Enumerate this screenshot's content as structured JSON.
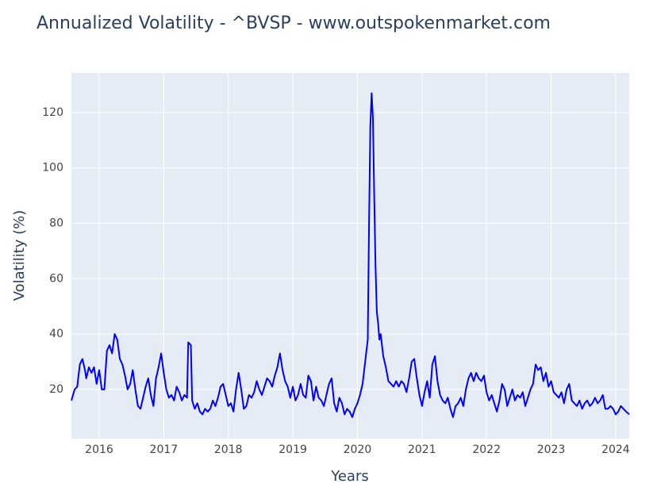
{
  "chart_data": {
    "type": "line",
    "title": "Annualized Volatility - ^BVSP - www.outspokenmarket.com",
    "x_label": "Years",
    "y_label": "Volatility (%)",
    "xlim": [
      2015.57,
      2024.21
    ],
    "xticks": [
      2016,
      2017,
      2018,
      2019,
      2020,
      2021,
      2022,
      2023,
      2024
    ],
    "ylim": [
      2.2,
      134.3
    ],
    "yticks": [
      20,
      40,
      60,
      80,
      100,
      120
    ],
    "grid": true,
    "x": [
      2015.57,
      2015.62,
      2015.66,
      2015.7,
      2015.74,
      2015.78,
      2015.8,
      2015.84,
      2015.88,
      2015.92,
      2015.96,
      2016.0,
      2016.04,
      2016.08,
      2016.12,
      2016.16,
      2016.2,
      2016.24,
      2016.28,
      2016.32,
      2016.36,
      2016.4,
      2016.44,
      2016.48,
      2016.52,
      2016.56,
      2016.6,
      2016.64,
      2016.68,
      2016.72,
      2016.76,
      2016.8,
      2016.84,
      2016.88,
      2016.92,
      2016.96,
      2017.0,
      2017.04,
      2017.08,
      2017.12,
      2017.16,
      2017.2,
      2017.24,
      2017.28,
      2017.32,
      2017.36,
      2017.38,
      2017.42,
      2017.44,
      2017.48,
      2017.52,
      2017.56,
      2017.6,
      2017.64,
      2017.68,
      2017.72,
      2017.76,
      2017.8,
      2017.84,
      2017.88,
      2017.92,
      2017.96,
      2018.0,
      2018.04,
      2018.08,
      2018.12,
      2018.16,
      2018.2,
      2018.24,
      2018.28,
      2018.32,
      2018.36,
      2018.4,
      2018.44,
      2018.48,
      2018.52,
      2018.56,
      2018.6,
      2018.64,
      2018.68,
      2018.72,
      2018.76,
      2018.8,
      2018.84,
      2018.88,
      2018.92,
      2018.96,
      2019.0,
      2019.04,
      2019.08,
      2019.12,
      2019.16,
      2019.2,
      2019.24,
      2019.28,
      2019.32,
      2019.36,
      2019.4,
      2019.44,
      2019.48,
      2019.52,
      2019.56,
      2019.6,
      2019.64,
      2019.68,
      2019.72,
      2019.76,
      2019.8,
      2019.84,
      2019.88,
      2019.92,
      2019.96,
      2020.0,
      2020.04,
      2020.08,
      2020.12,
      2020.16,
      2020.18,
      2020.2,
      2020.22,
      2020.24,
      2020.26,
      2020.28,
      2020.3,
      2020.32,
      2020.34,
      2020.36,
      2020.4,
      2020.44,
      2020.48,
      2020.52,
      2020.56,
      2020.6,
      2020.64,
      2020.68,
      2020.72,
      2020.76,
      2020.8,
      2020.84,
      2020.88,
      2020.92,
      2020.96,
      2021.0,
      2021.04,
      2021.08,
      2021.12,
      2021.16,
      2021.2,
      2021.24,
      2021.28,
      2021.32,
      2021.36,
      2021.4,
      2021.44,
      2021.48,
      2021.52,
      2021.56,
      2021.6,
      2021.64,
      2021.68,
      2021.72,
      2021.76,
      2021.8,
      2021.84,
      2021.88,
      2021.92,
      2021.96,
      2022.0,
      2022.04,
      2022.08,
      2022.12,
      2022.16,
      2022.2,
      2022.24,
      2022.28,
      2022.32,
      2022.36,
      2022.4,
      2022.44,
      2022.48,
      2022.52,
      2022.56,
      2022.6,
      2022.64,
      2022.68,
      2022.72,
      2022.76,
      2022.8,
      2022.84,
      2022.88,
      2022.92,
      2022.96,
      2023.0,
      2023.04,
      2023.08,
      2023.12,
      2023.16,
      2023.2,
      2023.24,
      2023.28,
      2023.32,
      2023.36,
      2023.4,
      2023.44,
      2023.48,
      2023.52,
      2023.56,
      2023.6,
      2023.64,
      2023.68,
      2023.72,
      2023.76,
      2023.8,
      2023.84,
      2023.88,
      2023.92,
      2023.96,
      2024.0,
      2024.04,
      2024.08,
      2024.12,
      2024.16,
      2024.21
    ],
    "series": [
      {
        "name": "Volatility",
        "color": "#0000ff",
        "values": [
          16,
          20,
          21,
          29,
          31,
          27,
          24,
          28,
          26,
          28,
          22,
          27,
          20,
          20,
          34,
          36,
          33,
          40,
          38,
          31,
          29,
          25,
          20,
          22,
          27,
          20,
          14,
          13,
          17,
          21,
          24,
          18,
          14,
          24,
          28,
          33,
          26,
          20,
          17,
          18,
          16,
          21,
          19,
          16,
          18,
          17,
          37,
          36,
          16,
          13,
          15,
          12,
          11,
          13,
          12,
          13,
          16,
          14,
          17,
          21,
          22,
          18,
          14,
          15,
          12,
          20,
          26,
          20,
          13,
          14,
          18,
          17,
          19,
          23,
          20,
          18,
          21,
          24,
          23,
          21,
          25,
          28,
          33,
          27,
          23,
          21,
          17,
          21,
          16,
          18,
          22,
          18,
          17,
          25,
          23,
          16,
          21,
          17,
          16,
          14,
          18,
          22,
          24,
          15,
          12,
          17,
          15,
          11,
          13,
          12,
          10,
          13,
          15,
          18,
          22,
          30,
          38,
          80,
          115,
          127,
          118,
          90,
          65,
          48,
          44,
          38,
          40,
          32,
          28,
          23,
          22,
          21,
          23,
          21,
          23,
          22,
          19,
          24,
          30,
          31,
          24,
          18,
          14,
          19,
          23,
          17,
          29,
          32,
          23,
          18,
          16,
          15,
          17,
          13,
          10,
          14,
          15,
          17,
          14,
          20,
          24,
          26,
          23,
          26,
          24,
          23,
          25,
          19,
          16,
          18,
          15,
          12,
          16,
          22,
          20,
          14,
          17,
          20,
          16,
          18,
          17,
          19,
          14,
          17,
          20,
          22,
          29,
          27,
          28,
          23,
          26,
          21,
          23,
          19,
          18,
          17,
          19,
          15,
          20,
          22,
          16,
          15,
          14,
          16,
          13,
          15,
          16,
          14,
          15,
          17,
          15,
          16,
          18,
          13,
          13,
          14,
          13,
          11,
          12,
          14,
          13,
          12,
          11
        ]
      }
    ]
  }
}
